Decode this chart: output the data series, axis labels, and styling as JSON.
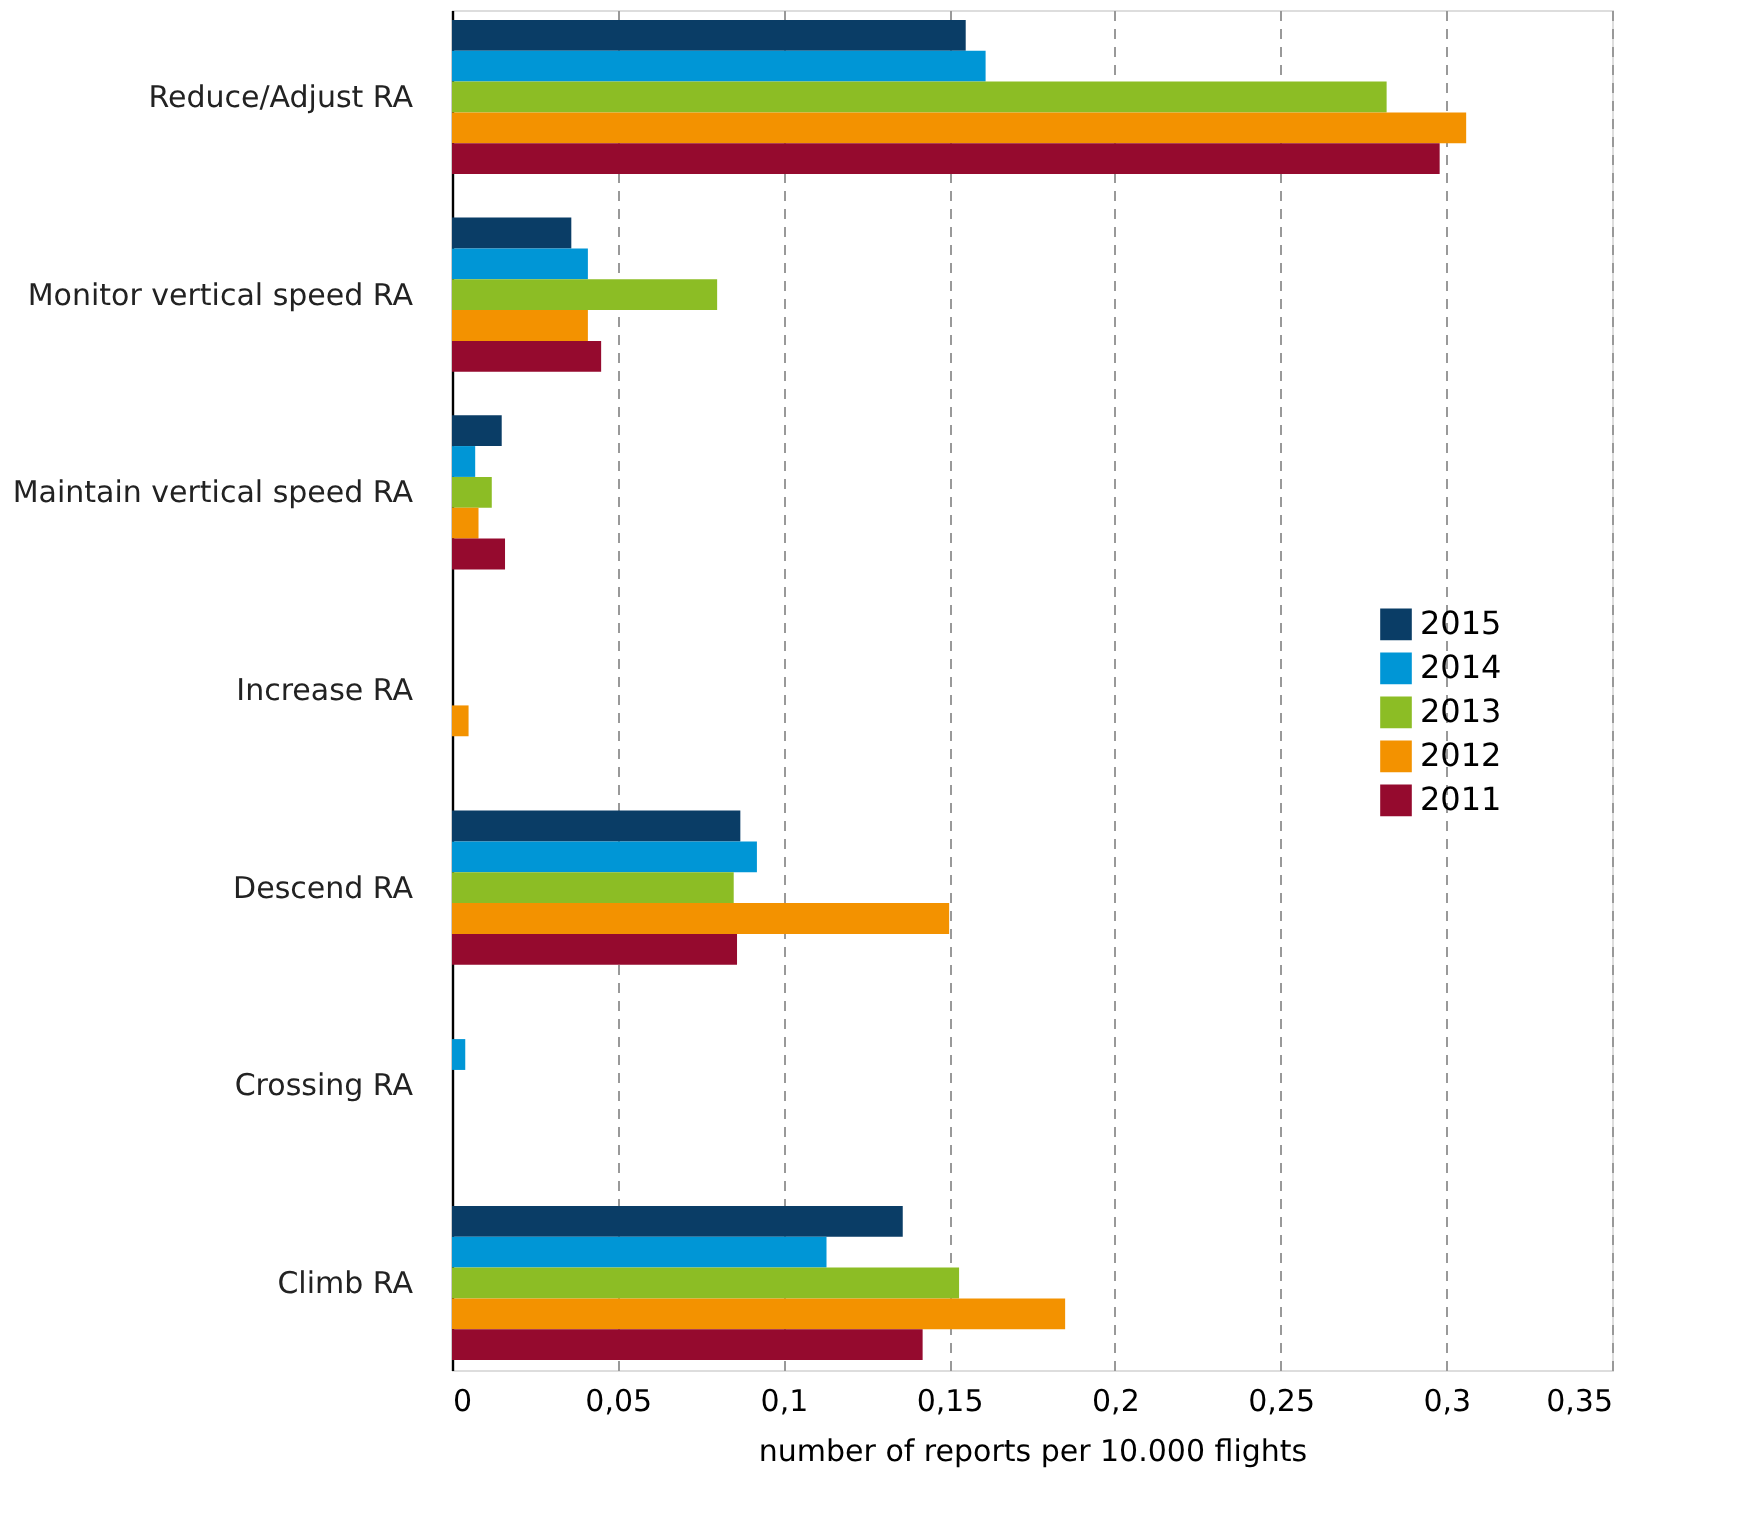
{
  "chart_data": {
    "type": "bar",
    "orientation": "horizontal",
    "xlabel": "number of reports per 10.000 flights",
    "categories": [
      "Reduce/Adjust RA",
      "Monitor vertical speed RA",
      "Maintain vertical speed RA",
      "Increase RA",
      "Descend RA",
      "Crossing RA",
      "Climb RA"
    ],
    "series": [
      {
        "name": "2015",
        "color": "#0a3d66",
        "values": [
          0.155,
          0.036,
          0.015,
          0,
          0.087,
          0,
          0.136
        ]
      },
      {
        "name": "2014",
        "color": "#0096d6",
        "values": [
          0.161,
          0.041,
          0.007,
          0,
          0.092,
          0.004,
          0.113
        ]
      },
      {
        "name": "2013",
        "color": "#8cbd25",
        "values": [
          0.282,
          0.08,
          0.012,
          0,
          0.085,
          0,
          0.153
        ]
      },
      {
        "name": "2012",
        "color": "#f39200",
        "values": [
          0.306,
          0.041,
          0.008,
          0.005,
          0.15,
          0,
          0.185
        ]
      },
      {
        "name": "2011",
        "color": "#950a2e",
        "values": [
          0.298,
          0.045,
          0.016,
          0,
          0.086,
          0,
          0.142
        ]
      }
    ],
    "xlim": [
      0,
      0.35
    ],
    "xticks": [
      0,
      {
        "value": 0.05,
        "label": "0,05"
      },
      {
        "value": 0.1,
        "label": "0,1"
      },
      {
        "value": 0.15,
        "label": "0,15"
      },
      {
        "value": 0.2,
        "label": "0,2"
      },
      {
        "value": 0.25,
        "label": "0,25"
      },
      {
        "value": 0.3,
        "label": "0,3"
      },
      {
        "value": 0.35,
        "label": "0,35"
      }
    ],
    "grid": "x",
    "legend": "right"
  }
}
